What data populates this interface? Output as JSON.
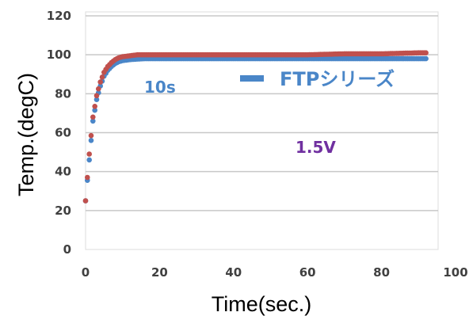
{
  "chart_data": {
    "type": "scatter",
    "title": "",
    "xlabel": "Time(sec.)",
    "ylabel": "Temp.(degC)",
    "xlim": [
      0,
      100
    ],
    "ylim": [
      0,
      120
    ],
    "x_ticks": [
      "0",
      "20",
      "40",
      "60",
      "80",
      "100"
    ],
    "y_ticks": [
      "0",
      "20",
      "40",
      "60",
      "80",
      "100",
      "120"
    ],
    "grid": "horizontal",
    "legend": {
      "label": "FTPシリーズ",
      "color": "#4a86c8",
      "placement": "top-right"
    },
    "annotations": [
      {
        "text": "10s",
        "color": "#4a86c8"
      },
      {
        "text": "1.5V",
        "color": "#7030a0"
      }
    ],
    "series": [
      {
        "color": "#4a86c8",
        "x": [
          0,
          1,
          2,
          3,
          4,
          5,
          6,
          7,
          8,
          9,
          10,
          12,
          14,
          16,
          18,
          20,
          25,
          30,
          40,
          50,
          60,
          70,
          80,
          90,
          92
        ],
        "y": [
          25,
          46,
          66,
          77,
          84,
          89,
          92,
          94,
          95.5,
          96.5,
          97,
          97.5,
          97.8,
          98,
          98,
          98,
          98,
          98,
          98,
          98,
          98,
          98,
          98,
          98,
          98
        ]
      },
      {
        "color": "#c0504d",
        "x": [
          0,
          1,
          2,
          3,
          4,
          5,
          6,
          7,
          8,
          9,
          10,
          12,
          14,
          16,
          18,
          20,
          25,
          30,
          40,
          50,
          60,
          70,
          80,
          90,
          92
        ],
        "y": [
          25,
          49,
          68,
          79,
          86,
          91,
          94,
          96,
          97.5,
          98.5,
          99,
          99.5,
          100,
          100,
          100,
          100,
          100,
          100,
          100,
          100,
          100,
          100.5,
          100.5,
          101,
          101
        ]
      }
    ]
  }
}
